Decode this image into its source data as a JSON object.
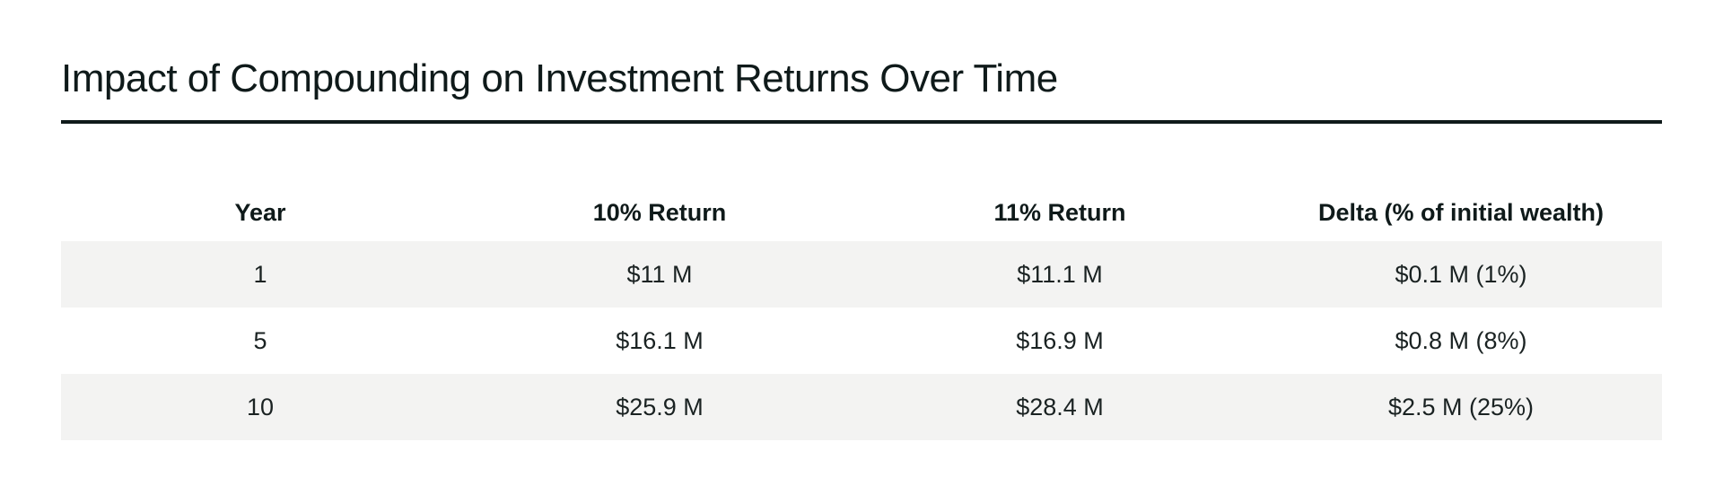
{
  "title": "Impact of Compounding on Investment Returns Over Time",
  "table": {
    "headers": [
      "Year",
      "10% Return",
      "11% Return",
      "Delta (% of initial wealth)"
    ],
    "rows": [
      [
        "1",
        "$11 M",
        "$11.1 M",
        "$0.1 M (1%)"
      ],
      [
        "5",
        "$16.1 M",
        "$16.9 M",
        "$0.8 M (8%)"
      ],
      [
        "10",
        "$25.9 M",
        "$28.4 M",
        "$2.5 M (25%)"
      ]
    ]
  },
  "colors": {
    "text": "#0f1a1a",
    "rule": "#0f1a1a",
    "stripe": "#f3f3f2",
    "background": "#ffffff"
  }
}
